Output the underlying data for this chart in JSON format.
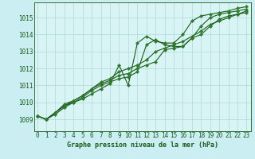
{
  "title": "Graphe pression niveau de la mer (hPa)",
  "background_color": "#cbeef3",
  "plot_bg_color": "#d8f4f4",
  "grid_color": "#b0d8d8",
  "line_color": "#1a5c1a",
  "marker_color": "#2d7a2d",
  "x_ticks": [
    0,
    1,
    2,
    3,
    4,
    5,
    6,
    7,
    8,
    9,
    10,
    11,
    12,
    13,
    14,
    15,
    16,
    17,
    18,
    19,
    20,
    21,
    22,
    23
  ],
  "y_ticks": [
    1009,
    1010,
    1011,
    1012,
    1013,
    1014,
    1015
  ],
  "ylim": [
    1008.3,
    1015.9
  ],
  "xlim": [
    -0.3,
    23.5
  ],
  "series": [
    [
      1009.2,
      1009.0,
      1009.3,
      1009.7,
      1010.0,
      1010.2,
      1010.5,
      1010.8,
      1011.1,
      1012.2,
      1011.0,
      1013.5,
      1013.9,
      1013.6,
      1013.5,
      1013.5,
      1014.0,
      1014.8,
      1015.1,
      1015.2,
      1015.3,
      1015.4,
      1015.55,
      1015.65
    ],
    [
      1009.2,
      1009.0,
      1009.4,
      1009.8,
      1010.0,
      1010.3,
      1010.7,
      1011.0,
      1011.2,
      1011.4,
      1011.5,
      1011.8,
      1013.4,
      1013.7,
      1013.4,
      1013.3,
      1013.3,
      1013.8,
      1014.5,
      1015.0,
      1015.2,
      1015.3,
      1015.4,
      1015.5
    ],
    [
      1009.2,
      1009.0,
      1009.4,
      1009.8,
      1010.1,
      1010.4,
      1010.8,
      1011.1,
      1011.3,
      1011.6,
      1011.7,
      1012.0,
      1012.2,
      1012.4,
      1013.1,
      1013.2,
      1013.3,
      1013.8,
      1014.0,
      1014.5,
      1014.9,
      1015.1,
      1015.2,
      1015.3
    ],
    [
      1009.2,
      1009.0,
      1009.4,
      1009.9,
      1010.1,
      1010.4,
      1010.8,
      1011.2,
      1011.4,
      1011.8,
      1012.0,
      1012.2,
      1012.5,
      1013.0,
      1013.2,
      1013.4,
      1013.6,
      1013.9,
      1014.2,
      1014.6,
      1014.8,
      1015.0,
      1015.2,
      1015.4
    ]
  ],
  "title_fontsize": 6.0,
  "tick_fontsize": 5.5
}
